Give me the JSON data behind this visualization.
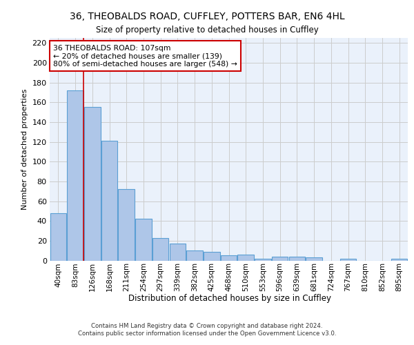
{
  "title1": "36, THEOBALDS ROAD, CUFFLEY, POTTERS BAR, EN6 4HL",
  "title2": "Size of property relative to detached houses in Cuffley",
  "xlabel": "Distribution of detached houses by size in Cuffley",
  "ylabel": "Number of detached properties",
  "categories": [
    "40sqm",
    "83sqm",
    "126sqm",
    "168sqm",
    "211sqm",
    "254sqm",
    "297sqm",
    "339sqm",
    "382sqm",
    "425sqm",
    "468sqm",
    "510sqm",
    "553sqm",
    "596sqm",
    "639sqm",
    "681sqm",
    "724sqm",
    "767sqm",
    "810sqm",
    "852sqm",
    "895sqm"
  ],
  "values": [
    48,
    172,
    155,
    121,
    72,
    42,
    23,
    17,
    10,
    9,
    5,
    6,
    2,
    4,
    4,
    3,
    0,
    2,
    0,
    0,
    2
  ],
  "bar_color": "#aec6e8",
  "bar_edgecolor": "#5a9fd4",
  "bar_linewidth": 0.8,
  "grid_color": "#cccccc",
  "bg_color": "#eaf1fb",
  "annotation_box_text": "36 THEOBALDS ROAD: 107sqm\n← 20% of detached houses are smaller (139)\n80% of semi-detached houses are larger (548) →",
  "annotation_box_color": "#ffffff",
  "annotation_box_edgecolor": "#cc0000",
  "red_line_x": 1.5,
  "red_line_color": "#cc0000",
  "footnote1": "Contains HM Land Registry data © Crown copyright and database right 2024.",
  "footnote2": "Contains public sector information licensed under the Open Government Licence v3.0.",
  "ylim": [
    0,
    225
  ],
  "yticks": [
    0,
    20,
    40,
    60,
    80,
    100,
    120,
    140,
    160,
    180,
    200,
    220
  ]
}
